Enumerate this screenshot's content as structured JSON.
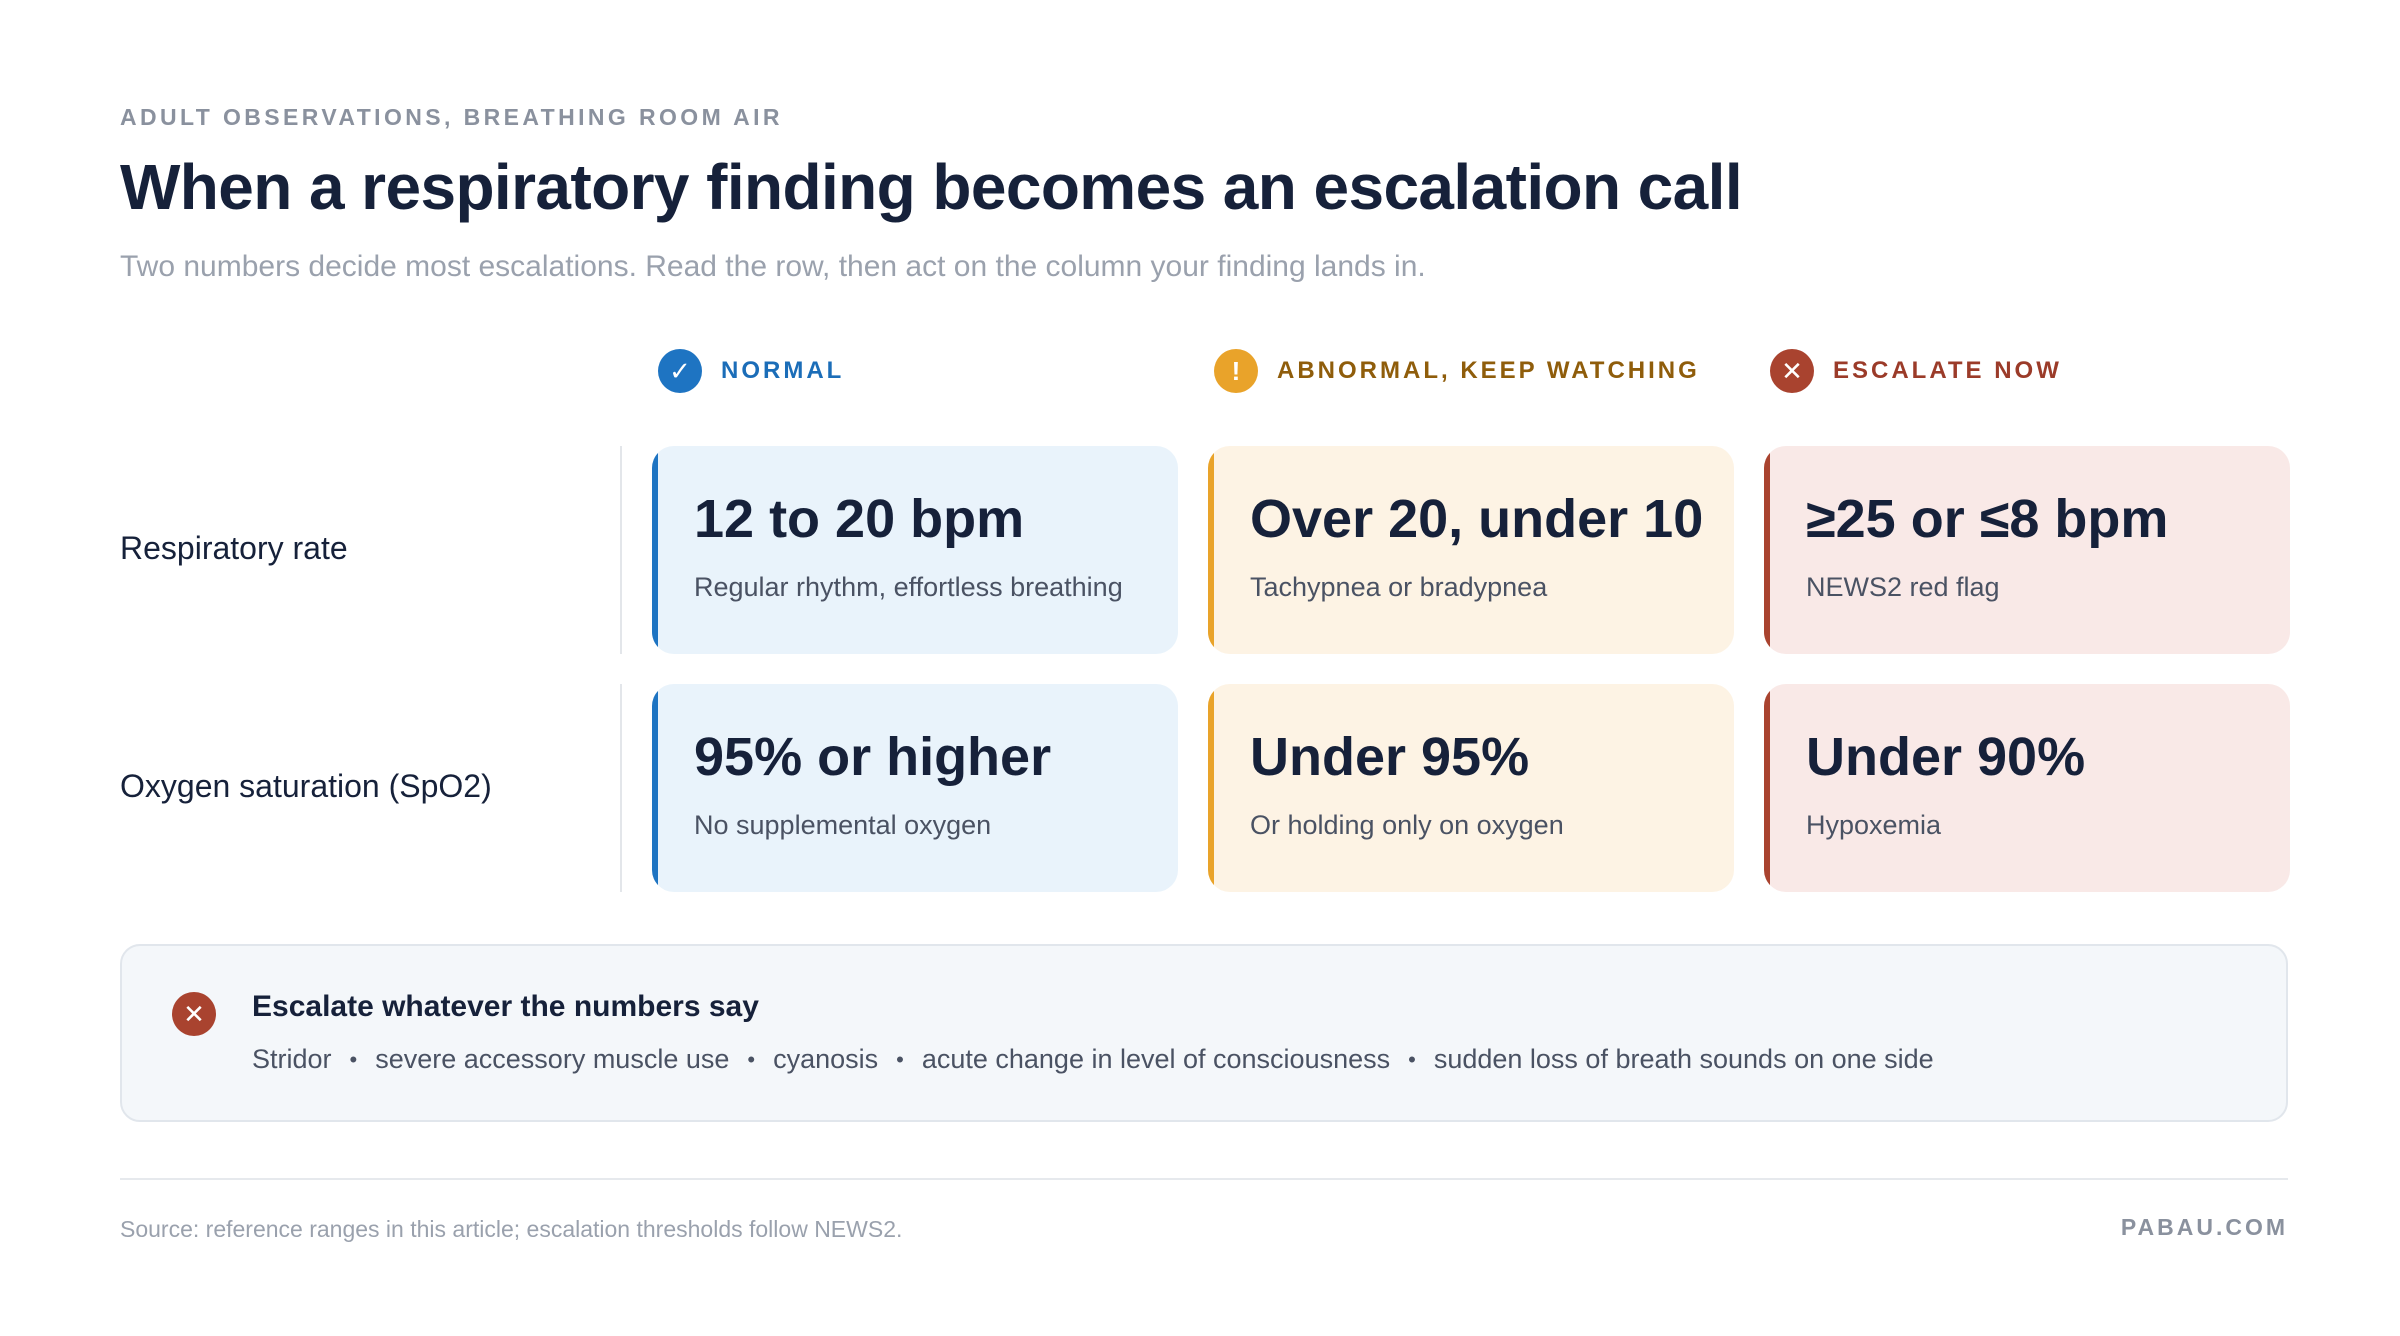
{
  "header": {
    "eyebrow": "ADULT OBSERVATIONS, BREATHING ROOM AIR",
    "title": "When a respiratory finding becomes an escalation call",
    "subtitle": "Two numbers decide most escalations. Read the row, then act on the column your finding lands in."
  },
  "columns": [
    {
      "label": "NORMAL",
      "icon": "check-icon",
      "glyph": "✓",
      "color": "#1e74c2",
      "text_color": "#1b6db8"
    },
    {
      "label": "ABNORMAL, KEEP WATCHING",
      "icon": "exclamation-icon",
      "glyph": "!",
      "color": "#e9a32a",
      "text_color": "#8f5d0b"
    },
    {
      "label": "ESCALATE NOW",
      "icon": "x-icon",
      "glyph": "✕",
      "color": "#a9432f",
      "text_color": "#9b3b29"
    }
  ],
  "rows": [
    {
      "label": "Respiratory rate",
      "cells": [
        {
          "value": "12 to 20 bpm",
          "note": "Regular rhythm, effortless breathing"
        },
        {
          "value": "Over 20, under 10",
          "note": "Tachypnea or bradypnea"
        },
        {
          "value": "≥25 or ≤8 bpm",
          "note": "NEWS2 red flag"
        }
      ]
    },
    {
      "label": "Oxygen saturation (SpO2)",
      "cells": [
        {
          "value": "95% or higher",
          "note": "No supplemental oxygen"
        },
        {
          "value": "Under 95%",
          "note": "Or holding only on oxygen"
        },
        {
          "value": "Under 90%",
          "note": "Hypoxemia"
        }
      ]
    }
  ],
  "callout": {
    "icon": "x-icon",
    "glyph": "✕",
    "heading": "Escalate whatever the numbers say",
    "items": [
      "Stridor",
      "severe accessory muscle use",
      "cyanosis",
      "acute change in level of consciousness",
      "sudden loss of breath sounds on one side"
    ],
    "separator": "•"
  },
  "footer": {
    "source": "Source: reference ranges in this article; escalation thresholds follow NEWS2.",
    "brand": "PABAU.COM"
  }
}
